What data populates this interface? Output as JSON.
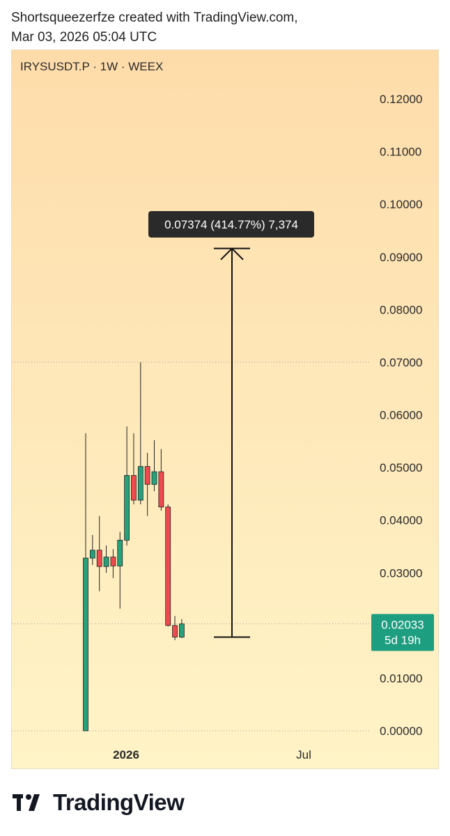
{
  "header": {
    "line1": "Shortsqueezerfze created with TradingView.com,",
    "line2": "Mar 03, 2026 05:04 UTC"
  },
  "symbol_line": "IRYSUSDT.P · 1W · WEEX",
  "price_label": {
    "price": "0.02033",
    "countdown": "5d 19h"
  },
  "measure_label": "0.07374 (414.77%) 7,374",
  "brand": {
    "name": "TradingView",
    "logo": "tradingview-logo-icon"
  },
  "colors": {
    "up": "#26a17b",
    "down": "#ef4b4f",
    "price_tag": "#1e9e80",
    "label_bg": "#2a2a2a"
  },
  "chart_data": {
    "type": "candlestick",
    "title": "IRYSUSDT.P · 1W · WEEX",
    "timeframe": "1W",
    "ylim": [
      0,
      0.12
    ],
    "y_ticks": [
      "0.12000",
      "0.11000",
      "0.10000",
      "0.09000",
      "0.08000",
      "0.07000",
      "0.06000",
      "0.05000",
      "0.04000",
      "0.03000",
      "0.02000",
      "0.01000",
      "0.00000"
    ],
    "x_ticks": [
      "2026",
      "Jul"
    ],
    "horizontal_lines": [
      0.07,
      0.02033,
      0
    ],
    "candles": [
      {
        "o": 0.0,
        "h": 0.0565,
        "l": 0.0,
        "c": 0.0328
      },
      {
        "o": 0.0328,
        "h": 0.0372,
        "l": 0.0315,
        "c": 0.0343
      },
      {
        "o": 0.0343,
        "h": 0.0408,
        "l": 0.0265,
        "c": 0.0312
      },
      {
        "o": 0.0312,
        "h": 0.0352,
        "l": 0.03,
        "c": 0.033
      },
      {
        "o": 0.033,
        "h": 0.0345,
        "l": 0.029,
        "c": 0.0313
      },
      {
        "o": 0.0313,
        "h": 0.0378,
        "l": 0.0232,
        "c": 0.0362
      },
      {
        "o": 0.0362,
        "h": 0.0578,
        "l": 0.0352,
        "c": 0.0485
      },
      {
        "o": 0.0485,
        "h": 0.0565,
        "l": 0.043,
        "c": 0.0438
      },
      {
        "o": 0.0438,
        "h": 0.07,
        "l": 0.043,
        "c": 0.0502
      },
      {
        "o": 0.0502,
        "h": 0.0528,
        "l": 0.0408,
        "c": 0.0468
      },
      {
        "o": 0.0468,
        "h": 0.0552,
        "l": 0.0455,
        "c": 0.0492
      },
      {
        "o": 0.0492,
        "h": 0.0535,
        "l": 0.0418,
        "c": 0.0425
      },
      {
        "o": 0.0425,
        "h": 0.043,
        "l": 0.0198,
        "c": 0.02
      },
      {
        "o": 0.02,
        "h": 0.0218,
        "l": 0.0172,
        "c": 0.0178
      },
      {
        "o": 0.0178,
        "h": 0.0212,
        "l": 0.0176,
        "c": 0.0203
      }
    ],
    "measure": {
      "from": 0.0178,
      "to": 0.0916,
      "change": "0.07374",
      "percent": "414.77%",
      "ticks": "7,374"
    },
    "last_price": 0.02033
  }
}
